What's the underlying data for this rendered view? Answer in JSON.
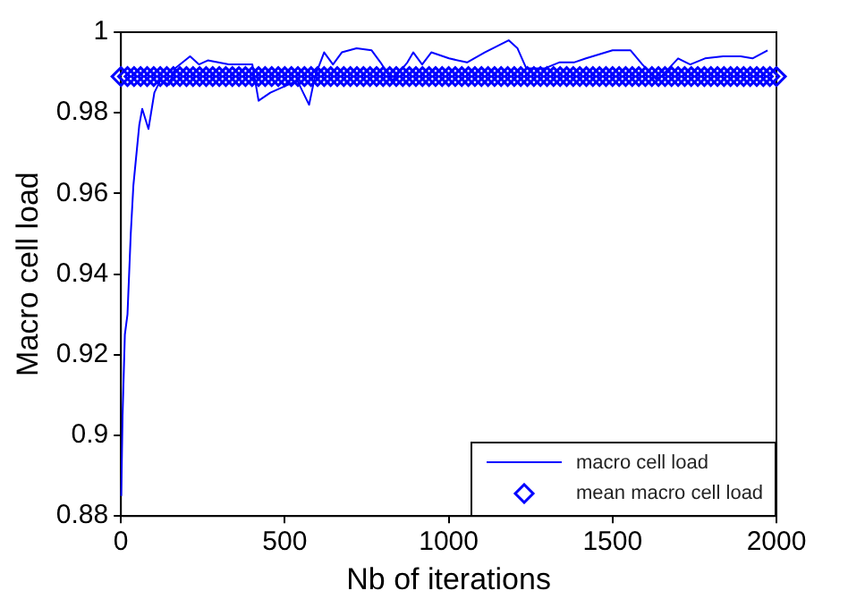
{
  "chart_data": {
    "type": "line",
    "xlabel": "Nb of iterations",
    "ylabel": "Macro cell load",
    "xlim": [
      0,
      2000
    ],
    "xticks": [
      0,
      500,
      1000,
      1500,
      2000
    ],
    "ylim": [
      0.88,
      1
    ],
    "yticks": [
      0.88,
      0.9,
      0.92,
      0.94,
      0.96,
      0.98,
      1
    ],
    "grid": false,
    "legend": "bottom right",
    "series": [
      {
        "name": "macro cell load",
        "type": "line",
        "color": "#0000ff",
        "marker": "none",
        "x": [
          1,
          5,
          12,
          20,
          30,
          38,
          56,
          65,
          84,
          102,
          120,
          147,
          165,
          211,
          238,
          265,
          329,
          401,
          420,
          456,
          511,
          538,
          574,
          592,
          620,
          647,
          674,
          719,
          765,
          792,
          828,
          874,
          892,
          919,
          947,
          1001,
          1056,
          1110,
          1183,
          1210,
          1237,
          1292,
          1337,
          1382,
          1419,
          1500,
          1555,
          1591,
          1637,
          1700,
          1737,
          1782,
          1837,
          1891,
          1927,
          1973
        ],
        "values": [
          0.885,
          0.905,
          0.925,
          0.93,
          0.95,
          0.962,
          0.977,
          0.981,
          0.976,
          0.985,
          0.988,
          0.987,
          0.991,
          0.994,
          0.992,
          0.993,
          0.992,
          0.992,
          0.983,
          0.985,
          0.987,
          0.988,
          0.982,
          0.989,
          0.995,
          0.992,
          0.995,
          0.996,
          0.9955,
          0.9925,
          0.988,
          0.9925,
          0.995,
          0.992,
          0.995,
          0.9935,
          0.9925,
          0.995,
          0.998,
          0.996,
          0.991,
          0.991,
          0.9925,
          0.9925,
          0.9935,
          0.9955,
          0.9955,
          0.992,
          0.988,
          0.9935,
          0.992,
          0.9935,
          0.994,
          0.994,
          0.9935,
          0.9955
        ]
      },
      {
        "name": "mean macro cell load",
        "type": "scatter",
        "color": "#0000ff",
        "marker": "diamond",
        "x": [
          0,
          20,
          40,
          60,
          80,
          100,
          120,
          140,
          160,
          180,
          200,
          220,
          240,
          260,
          280,
          300,
          320,
          340,
          360,
          380,
          400,
          420,
          440,
          460,
          480,
          500,
          520,
          540,
          560,
          580,
          600,
          620,
          640,
          660,
          680,
          700,
          720,
          740,
          760,
          780,
          800,
          820,
          840,
          860,
          880,
          900,
          920,
          940,
          960,
          980,
          1000,
          1020,
          1040,
          1060,
          1080,
          1100,
          1120,
          1140,
          1160,
          1180,
          1200,
          1220,
          1240,
          1260,
          1280,
          1300,
          1320,
          1340,
          1360,
          1380,
          1400,
          1420,
          1440,
          1460,
          1480,
          1500,
          1520,
          1540,
          1560,
          1580,
          1600,
          1620,
          1640,
          1660,
          1680,
          1700,
          1720,
          1740,
          1760,
          1780,
          1800,
          1820,
          1840,
          1860,
          1880,
          1900,
          1920,
          1940,
          1960,
          1980,
          2000
        ],
        "values": [
          0.989,
          0.989,
          0.989,
          0.989,
          0.989,
          0.989,
          0.989,
          0.989,
          0.989,
          0.989,
          0.989,
          0.989,
          0.989,
          0.989,
          0.989,
          0.989,
          0.989,
          0.989,
          0.989,
          0.989,
          0.989,
          0.989,
          0.989,
          0.989,
          0.989,
          0.989,
          0.989,
          0.989,
          0.989,
          0.989,
          0.989,
          0.989,
          0.989,
          0.989,
          0.989,
          0.989,
          0.989,
          0.989,
          0.989,
          0.989,
          0.989,
          0.989,
          0.989,
          0.989,
          0.989,
          0.989,
          0.989,
          0.989,
          0.989,
          0.989,
          0.989,
          0.989,
          0.989,
          0.989,
          0.989,
          0.989,
          0.989,
          0.989,
          0.989,
          0.989,
          0.989,
          0.989,
          0.989,
          0.989,
          0.989,
          0.989,
          0.989,
          0.989,
          0.989,
          0.989,
          0.989,
          0.989,
          0.989,
          0.989,
          0.989,
          0.989,
          0.989,
          0.989,
          0.989,
          0.989,
          0.989,
          0.989,
          0.989,
          0.989,
          0.989,
          0.989,
          0.989,
          0.989,
          0.989,
          0.989,
          0.989,
          0.989,
          0.989,
          0.989,
          0.989,
          0.989,
          0.989,
          0.989,
          0.989,
          0.989,
          0.989
        ]
      }
    ]
  }
}
